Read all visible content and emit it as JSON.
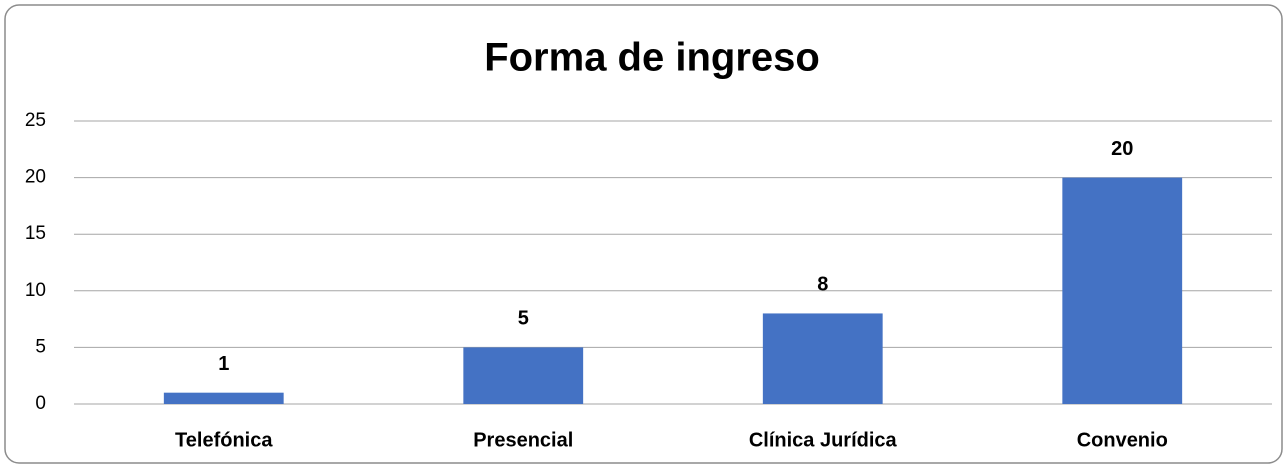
{
  "chart_data": {
    "type": "bar",
    "title": "Forma de ingreso",
    "categories": [
      "Telefónica",
      "Presencial",
      "Clínica Jurídica",
      "Convenio"
    ],
    "values": [
      1,
      5,
      8,
      20
    ],
    "color": "#4472c4",
    "ylim": [
      0,
      25
    ],
    "yticks": [
      0,
      5,
      10,
      15,
      20,
      25
    ],
    "grid": true
  }
}
